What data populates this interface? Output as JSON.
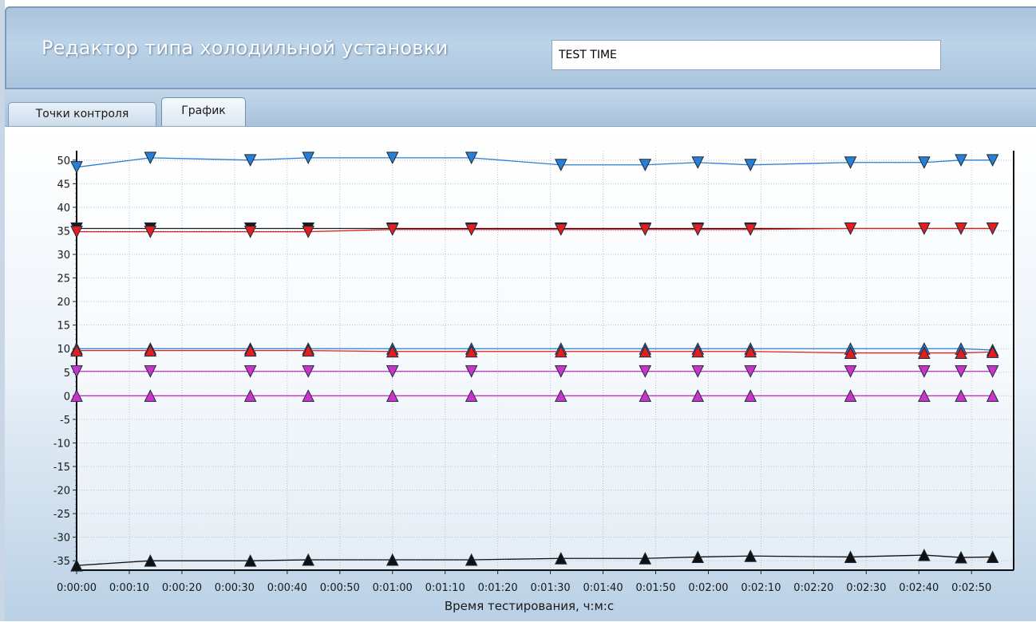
{
  "header": {
    "title": "Редактор типа холодильной установки",
    "name_value": "TEST TIME"
  },
  "tabs": [
    {
      "label": "Точки контроля",
      "active": false
    },
    {
      "label": "График",
      "active": true
    }
  ],
  "chart_data": {
    "type": "line",
    "xlabel": "Время тестирования, ч:м:с",
    "ylabel": "",
    "ylim": [
      -37,
      52
    ],
    "y_ticks": [
      50,
      45,
      40,
      35,
      30,
      25,
      20,
      15,
      10,
      5,
      0,
      -5,
      -10,
      -15,
      -20,
      -25,
      -30,
      -35
    ],
    "xlim": [
      0,
      178
    ],
    "x_ticks": [
      "0:00:00",
      "0:00:10",
      "0:00:20",
      "0:00:30",
      "0:00:40",
      "0:00:50",
      "0:01:00",
      "0:01:10",
      "0:01:20",
      "0:01:30",
      "0:01:40",
      "0:01:50",
      "0:02:00",
      "0:02:10",
      "0:02:20",
      "0:02:30",
      "0:02:40",
      "0:02:50"
    ],
    "x_tick_seconds": [
      0,
      10,
      20,
      30,
      40,
      50,
      60,
      70,
      80,
      90,
      100,
      110,
      120,
      130,
      140,
      150,
      160,
      170
    ],
    "grid": true,
    "x": [
      0,
      14,
      33,
      44,
      60,
      75,
      92,
      108,
      118,
      128,
      147,
      161,
      168,
      174
    ],
    "series": [
      {
        "color": "#2a7fd4",
        "marker": "down",
        "values": [
          48.5,
          50.5,
          50,
          50.5,
          50.5,
          50.5,
          49,
          49,
          49.5,
          49,
          49.5,
          49.5,
          50,
          50
        ]
      },
      {
        "color": "#1a1a1a",
        "marker": "down",
        "values": [
          35.5,
          35.5,
          35.5,
          35.5,
          35.5,
          35.5,
          35.5,
          35.5,
          35.5,
          35.5,
          35.5,
          35.5,
          35.5,
          35.5
        ]
      },
      {
        "color": "#e02020",
        "marker": "down",
        "values": [
          34.8,
          34.8,
          34.8,
          34.8,
          35.3,
          35.3,
          35.3,
          35.3,
          35.3,
          35.3,
          35.5,
          35.5,
          35.5,
          35.5
        ]
      },
      {
        "color": "#2a7fd4",
        "marker": "up",
        "values": [
          10,
          10,
          10,
          10,
          10,
          10,
          10,
          10,
          10,
          10,
          10,
          10,
          10,
          9.7
        ]
      },
      {
        "color": "#e02020",
        "marker": "up",
        "values": [
          9.6,
          9.6,
          9.6,
          9.6,
          9.4,
          9.4,
          9.4,
          9.4,
          9.4,
          9.4,
          9.1,
          9.1,
          9.1,
          9.3
        ]
      },
      {
        "color": "#cc33cc",
        "marker": "down",
        "values": [
          5.2,
          5.2,
          5.2,
          5.2,
          5.2,
          5.2,
          5.2,
          5.2,
          5.2,
          5.2,
          5.2,
          5.2,
          5.2,
          5.2
        ]
      },
      {
        "color": "#cc33cc",
        "marker": "up",
        "values": [
          0,
          0,
          0,
          0,
          0,
          0,
          0,
          0,
          0,
          0,
          0,
          0,
          0,
          0
        ]
      },
      {
        "color": "#111111",
        "marker": "up",
        "values": [
          -36,
          -35,
          -35,
          -34.8,
          -34.8,
          -34.8,
          -34.5,
          -34.5,
          -34.2,
          -34,
          -34.2,
          -33.8,
          -34.3,
          -34.2
        ]
      }
    ]
  }
}
